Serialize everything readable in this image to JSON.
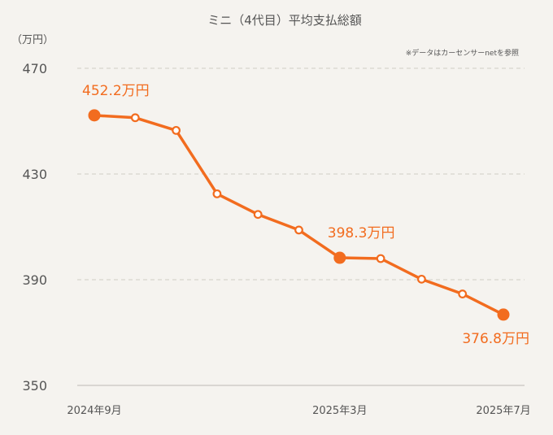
{
  "chart_data": {
    "type": "line",
    "title": "ミニ（4代目）平均支払総額",
    "note": "※データはカーセンサーnetを参照",
    "unit": "（万円）",
    "y_ticks": [
      "470",
      "430",
      "390",
      "350"
    ],
    "ylim": [
      350,
      470
    ],
    "x_tick_labels": [
      {
        "index": 0,
        "label": "2024年9月"
      },
      {
        "index": 6,
        "label": "2025年3月"
      },
      {
        "index": 10,
        "label": "2025年7月"
      }
    ],
    "values": [
      452.2,
      451.3,
      446.5,
      422.5,
      414.7,
      408.8,
      398.3,
      398.0,
      390.2,
      384.6,
      376.8
    ],
    "highlighted_points": [
      {
        "index": 0,
        "label": "452.2万円"
      },
      {
        "index": 6,
        "label": "398.3万円"
      },
      {
        "index": 10,
        "label": "376.8万円"
      }
    ],
    "grid": true,
    "color": "#f26c1f"
  }
}
